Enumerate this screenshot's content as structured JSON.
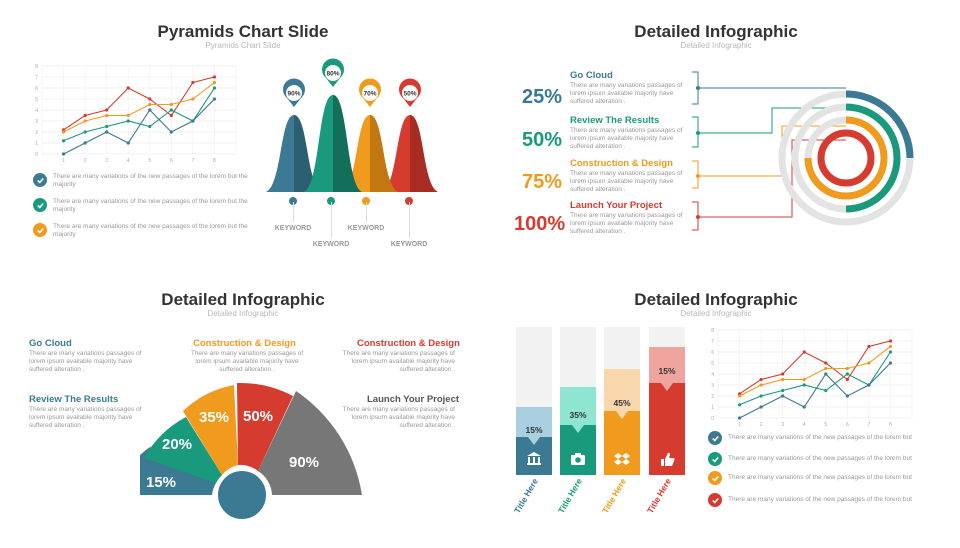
{
  "colors": {
    "teal": "#3b7a92",
    "green": "#1a9a7c",
    "orange": "#f09a1e",
    "red": "#d63b30",
    "gray": "#777777",
    "darkgray": "#555555"
  },
  "q1": {
    "title": "Pyramids Chart Slide",
    "subtitle": "Pyramids Chart Slide",
    "checks": [
      "There are many variations of the  new passages of the  lorem but the majority",
      "There are many variations of the  new passages of the lorem but the majority",
      "There are many variations of the  new passages of the lorem but the majority"
    ],
    "pyramids": [
      {
        "label": "90%",
        "value": 90,
        "keyword": "KEYWORD"
      },
      {
        "label": "80%",
        "value": 80,
        "keyword": "KEYWORD"
      },
      {
        "label": "70%",
        "value": 70,
        "keyword": "KEYWORD"
      },
      {
        "label": "50%",
        "value": 50,
        "keyword": "KEYWORD"
      }
    ]
  },
  "q2": {
    "title": "Detailed Infographic",
    "subtitle": "Detailed Infographic",
    "items": [
      {
        "percent": "25%",
        "title": "Go Cloud",
        "text": "There are many variations passages of lorem ipsum available  majority have suffered alteration ."
      },
      {
        "percent": "50%",
        "title": "Review The Results",
        "text": "There are many variations passages of lorem ipsum available  majority have suffered alteration ."
      },
      {
        "percent": "75%",
        "title": "Construction & Design",
        "text": "There are many variations passages of lorem ipsum available  majority have suffered alteration ."
      },
      {
        "percent": "100%",
        "title": "Launch Your Project",
        "text": "There are many variations passages of lorem ipsum available  majority have suffered alteration ."
      }
    ]
  },
  "q3": {
    "title": "Detailed Infographic",
    "subtitle": "Detailed Infographic",
    "blocks": [
      {
        "title": "Go Cloud",
        "text": "There are many variations passages of lorem ipsum available  majority have suffered alteration ."
      },
      {
        "title": "Construction & Design",
        "text": "There are many variations passages of lorem ipsum available  majority have suffered alteration ."
      },
      {
        "title": "Construction & Design",
        "text": "There are many variations passages of lorem ipsum available  majority have suffered alteration ."
      },
      {
        "title": "Review The Results",
        "text": "There are many variations passages of lorem ipsum available  majority have suffered alteration ."
      },
      {
        "title": "Launch Your Project",
        "text": "There are many variations passages of lorem ipsum available  majority have suffered alteration ."
      }
    ],
    "segments": [
      "15%",
      "20%",
      "35%",
      "50%",
      "90%"
    ]
  },
  "q4": {
    "title": "Detailed Infographic",
    "subtitle": "Detailed Infographic",
    "bars": [
      {
        "label": "15%",
        "value": 15,
        "caption": "Title Here",
        "icon": "bank-icon"
      },
      {
        "label": "35%",
        "value": 35,
        "caption": "Title Here",
        "icon": "camera-icon"
      },
      {
        "label": "45%",
        "value": 45,
        "caption": "Title Here",
        "icon": "dropbox-icon"
      },
      {
        "label": "15%",
        "value": 15,
        "caption": "Title Here",
        "icon": "thumbs-up-icon"
      }
    ],
    "checks": [
      "There are many variations of the  new passages of the  lorem but",
      "There are many variations of the  new passages of the lorem but",
      "There are many variations of the  new passages of the lorem but",
      "There are many variations of the  new passages of the lorem but"
    ]
  },
  "chart_data": [
    {
      "type": "line",
      "x": [
        1,
        2,
        3,
        4,
        5,
        6,
        7,
        8
      ],
      "xlim": [
        0,
        9
      ],
      "ylim": [
        0,
        8
      ],
      "series": [
        {
          "values": [
            2.2,
            3.5,
            4,
            6,
            5,
            3.5,
            6.5,
            7
          ]
        },
        {
          "values": [
            2,
            3,
            3.5,
            3.5,
            4.5,
            4.5,
            5,
            6.5
          ]
        },
        {
          "values": [
            1.2,
            2,
            2.5,
            3,
            2.5,
            4,
            3,
            6
          ]
        },
        {
          "values": [
            0,
            1,
            2,
            1,
            4,
            2,
            3,
            5
          ]
        }
      ]
    },
    {
      "type": "line",
      "x": [
        1,
        2,
        3,
        4,
        5,
        6,
        7,
        8
      ],
      "xlim": [
        0,
        9
      ],
      "ylim": [
        0,
        8
      ],
      "series": [
        {
          "values": [
            2.2,
            3.5,
            4,
            6,
            5,
            3.5,
            6.5,
            7
          ]
        },
        {
          "values": [
            2,
            3,
            3.5,
            3.5,
            4.5,
            4.5,
            5,
            6.5
          ]
        },
        {
          "values": [
            1.2,
            2,
            2.5,
            3,
            2.5,
            4,
            3,
            6
          ]
        },
        {
          "values": [
            0,
            1,
            2,
            1,
            4,
            2,
            3,
            5
          ]
        }
      ]
    }
  ]
}
